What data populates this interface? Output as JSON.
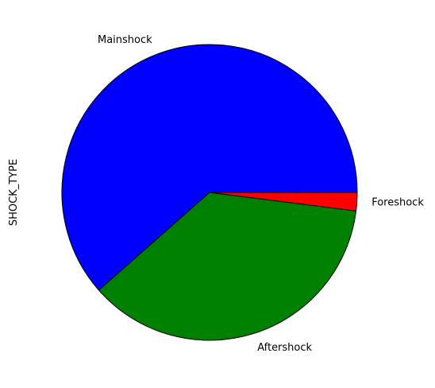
{
  "chart_data": {
    "type": "pie",
    "title": "",
    "ylabel": "SHOCK_TYPE",
    "categories": [
      "Mainshock",
      "Aftershock",
      "Foreshock"
    ],
    "values": [
      61.5,
      36.5,
      2.0
    ],
    "colors": [
      "#0000ff",
      "#008000",
      "#ff0000"
    ],
    "start_angle_deg": 0,
    "direction": "counterclockwise",
    "edge_color": "#000000",
    "legend": "none"
  }
}
